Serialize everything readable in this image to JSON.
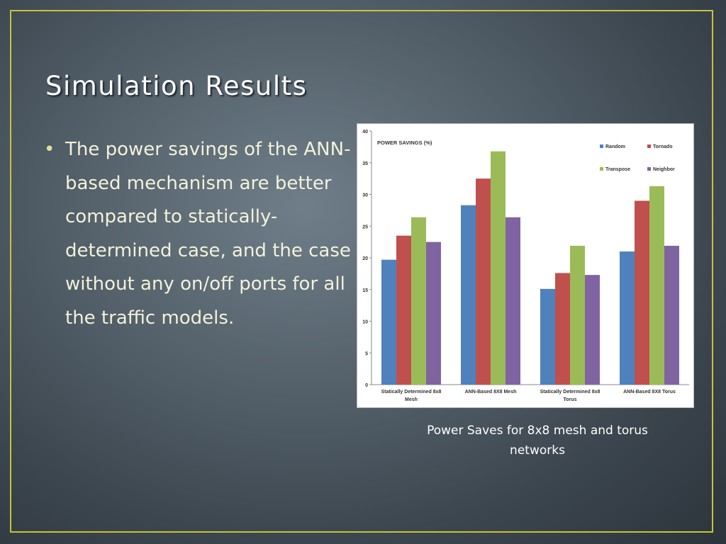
{
  "slide": {
    "title": "Simulation Results",
    "bullet_marker": "•",
    "bullet": "The power savings of the ANN-based mechanism are better compared to statically-determined case, and the case without any on/off ports for all the traffic models.",
    "caption": "Power Saves for 8x8 mesh and torus networks"
  },
  "chart_data": {
    "type": "bar",
    "title": "POWER SAVINGS (%)",
    "categories": [
      [
        "Statically Determined 8x8",
        "Mesh"
      ],
      [
        "ANN-Based 8X8 Mesh"
      ],
      [
        "Statically Determined 8x8",
        "Torus"
      ],
      [
        "ANN-Based 8X8 Torus"
      ]
    ],
    "series": [
      {
        "name": "Random",
        "color": "#4f81bd",
        "values": [
          19.7,
          28.3,
          15.1,
          21.0
        ]
      },
      {
        "name": "Tornado",
        "color": "#c0504d",
        "values": [
          23.5,
          32.5,
          17.6,
          29.0
        ]
      },
      {
        "name": "Transpose",
        "color": "#9bbb59",
        "values": [
          26.4,
          36.8,
          21.9,
          31.3
        ]
      },
      {
        "name": "Neighbor",
        "color": "#8064a2",
        "values": [
          22.5,
          26.4,
          17.3,
          21.9
        ]
      }
    ],
    "ylim": [
      0,
      40
    ],
    "yticks": [
      0,
      5,
      10,
      15,
      20,
      25,
      30,
      35,
      40
    ],
    "grid": false,
    "legend_position": "top-right"
  }
}
